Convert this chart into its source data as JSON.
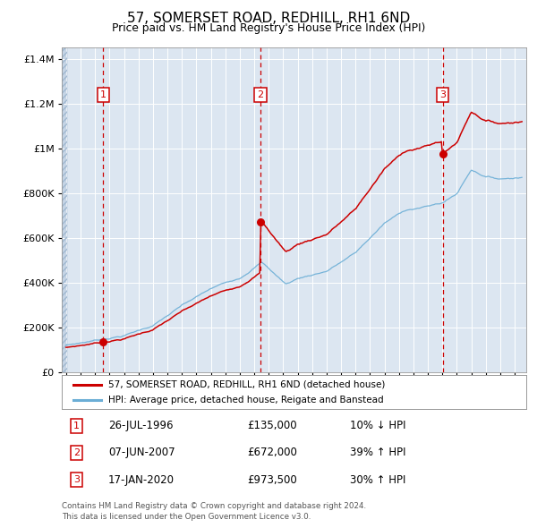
{
  "title": "57, SOMERSET ROAD, REDHILL, RH1 6ND",
  "subtitle": "Price paid vs. HM Land Registry's House Price Index (HPI)",
  "sale1_date": "26-JUL-1996",
  "sale1_year": 1996.57,
  "sale1_price": 135000,
  "sale2_date": "07-JUN-2007",
  "sale2_year": 2007.44,
  "sale2_price": 672000,
  "sale3_date": "17-JAN-2020",
  "sale3_year": 2020.04,
  "sale3_price": 973500,
  "red_line_color": "#cc0000",
  "blue_line_color": "#6baed6",
  "background_color": "#dce6f1",
  "sale1_pct": "10% ↓ HPI",
  "sale2_pct": "39% ↑ HPI",
  "sale3_pct": "30% ↑ HPI",
  "legend1": "57, SOMERSET ROAD, REDHILL, RH1 6ND (detached house)",
  "legend2": "HPI: Average price, detached house, Reigate and Banstead",
  "footer": "Contains HM Land Registry data © Crown copyright and database right 2024.\nThis data is licensed under the Open Government Licence v3.0.",
  "ylim_max": 1450000,
  "xlim_min": 1993.7,
  "xlim_max": 2025.8
}
